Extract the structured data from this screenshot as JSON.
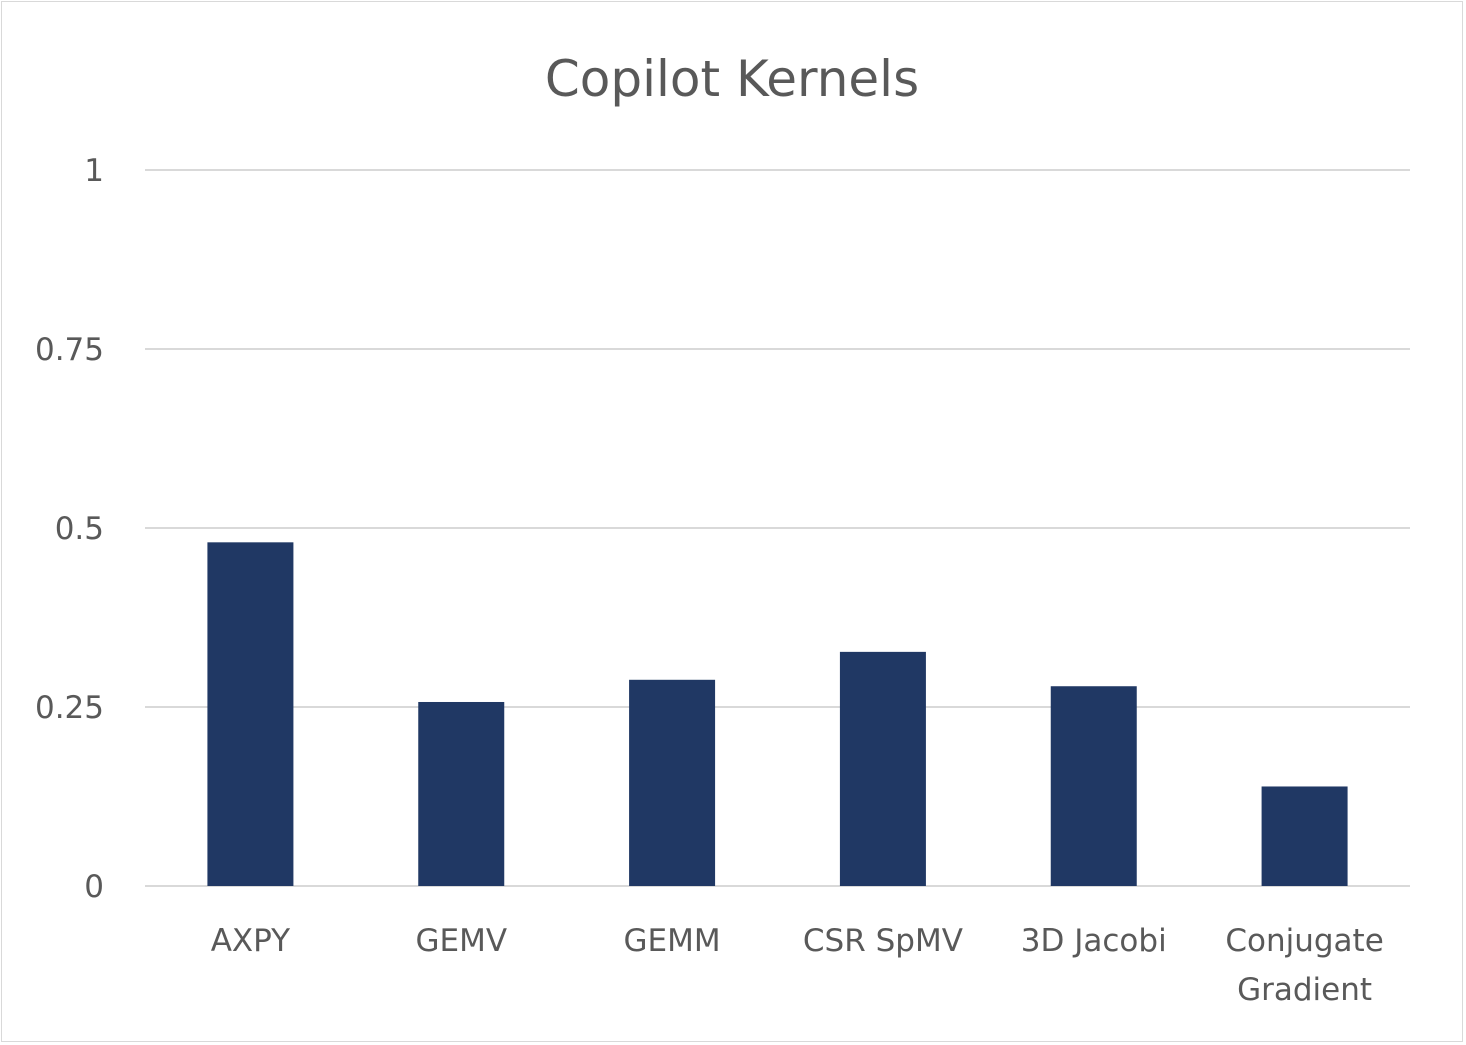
{
  "chart_data": {
    "type": "bar",
    "title": "Copilot Kernels",
    "xlabel": "",
    "ylabel": "",
    "categories": [
      "AXPY",
      "GEMV",
      "GEMM",
      "CSR SpMV",
      "3D Jacobi",
      "Conjugate Gradient"
    ],
    "category_lines": [
      [
        "AXPY"
      ],
      [
        "GEMV"
      ],
      [
        "GEMM"
      ],
      [
        "CSR SpMV"
      ],
      [
        "3D Jacobi"
      ],
      [
        "Conjugate",
        "Gradient"
      ]
    ],
    "values": [
      0.48,
      0.257,
      0.288,
      0.327,
      0.279,
      0.139
    ],
    "ylim": [
      0,
      1
    ],
    "yticks": [
      0,
      0.25,
      0.5,
      0.75,
      1
    ],
    "ytick_labels": [
      "0",
      "0.25",
      "0.5",
      "0.75",
      "1"
    ],
    "grid": true,
    "legend": "none",
    "colors": {
      "bar": "#203864",
      "grid": "#d9d9d9",
      "text": "#595959"
    }
  }
}
